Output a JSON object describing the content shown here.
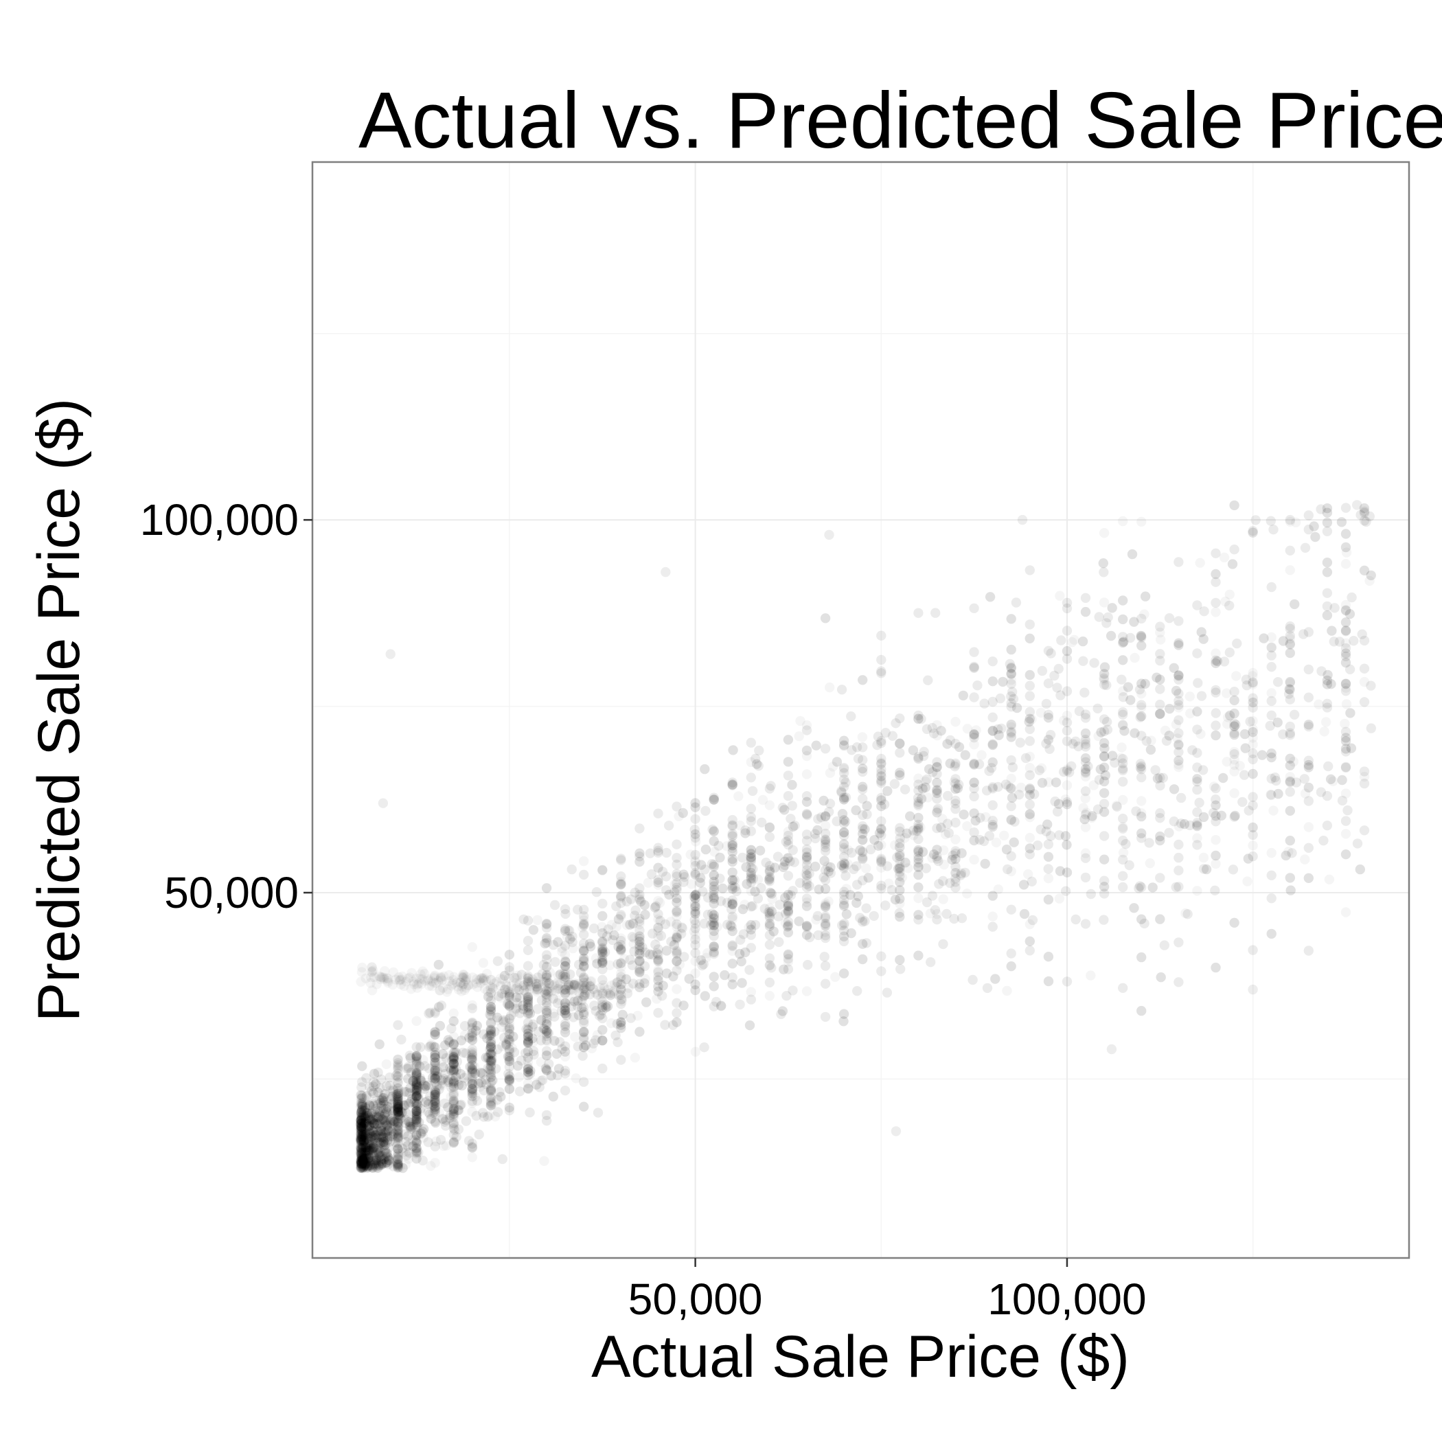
{
  "chart_data": {
    "type": "scatter",
    "title": "Actual vs. Predicted Sale Price",
    "xlabel": "Actual Sale Price ($)",
    "ylabel": "Predicted Sale Price ($)",
    "xlim": [
      -1500,
      146000
    ],
    "ylim": [
      1000,
      148000
    ],
    "x_ticks": [
      50000,
      100000
    ],
    "x_tick_labels": [
      "50,000",
      "100,000"
    ],
    "y_ticks": [
      50000,
      100000
    ],
    "y_tick_labels": [
      "50,000",
      "100,000"
    ],
    "grid": true,
    "point_color": "#000000",
    "point_alpha": 0.04,
    "point_density": "very dense near low values; spreads out as actual sale price increases",
    "x_range_of_points": [
      5000,
      141000
    ],
    "y_range_of_points": [
      13000,
      102000
    ],
    "series": [
      {
        "values": [
          [
            6000,
            16500
          ],
          [
            8000,
            18000
          ],
          [
            10000,
            20000
          ],
          [
            12000,
            21500
          ],
          [
            15000,
            23500
          ],
          [
            20000,
            27000
          ],
          [
            25000,
            30500
          ],
          [
            30000,
            34500
          ],
          [
            35000,
            38000
          ],
          [
            40000,
            41500
          ],
          [
            45000,
            44500
          ],
          [
            50000,
            47500
          ],
          [
            55000,
            50000
          ],
          [
            60000,
            52500
          ],
          [
            65000,
            54500
          ],
          [
            70000,
            56500
          ],
          [
            75000,
            58500
          ],
          [
            80000,
            60000
          ],
          [
            85000,
            61500
          ],
          [
            90000,
            63000
          ],
          [
            95000,
            64500
          ],
          [
            100000,
            66000
          ],
          [
            105000,
            67500
          ],
          [
            110000,
            69000
          ],
          [
            115000,
            70000
          ],
          [
            120000,
            71500
          ],
          [
            125000,
            72500
          ],
          [
            130000,
            75000
          ],
          [
            135000,
            78000
          ],
          [
            140000,
            85000
          ],
          [
            6500,
            40000
          ],
          [
            8000,
            62000
          ],
          [
            9000,
            82000
          ],
          [
            46000,
            93000
          ],
          [
            68000,
            98000
          ],
          [
            94000,
            100000
          ],
          [
            139000,
            102000
          ],
          [
            125000,
            37000
          ],
          [
            106000,
            29000
          ],
          [
            77000,
            18000
          ],
          [
            56000,
            35000
          ]
        ]
      }
    ]
  }
}
